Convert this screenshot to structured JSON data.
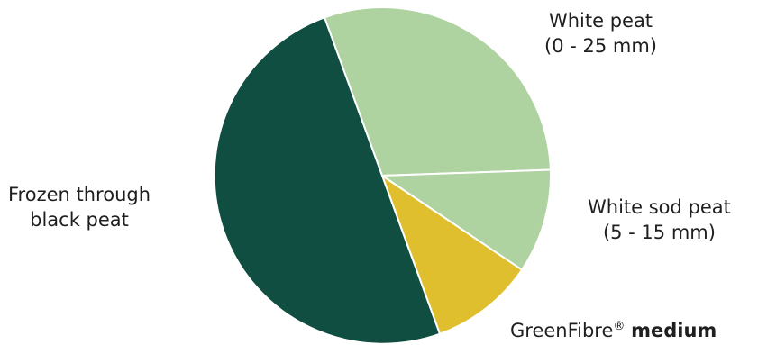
{
  "chart_data": {
    "type": "pie",
    "slices": [
      {
        "label": "White peat (0 - 25 mm)",
        "value": 30,
        "color": "#aed2a0"
      },
      {
        "label": "White sod peat (5 - 15 mm)",
        "value": 10,
        "color": "#aed2a0"
      },
      {
        "label": "GreenFibre® medium",
        "value": 10,
        "color": "#e0bf2e"
      },
      {
        "label": "Frozen through black peat",
        "value": 50,
        "color": "#0f4e40"
      }
    ],
    "start_angle_deg": -20,
    "direction": "clockwise",
    "slice_border_color": "#ffffff"
  },
  "labels": {
    "white_peat": {
      "line1": "White peat",
      "line2": "(0 - 25 mm)"
    },
    "white_sod_peat": {
      "line1": "White sod peat",
      "line2": "(5 - 15 mm)"
    },
    "frozen": {
      "line1": "Frozen through",
      "line2": "black peat"
    },
    "greenfibre": {
      "name": "GreenFibre",
      "mark": "®",
      "suffix": "medium"
    }
  }
}
